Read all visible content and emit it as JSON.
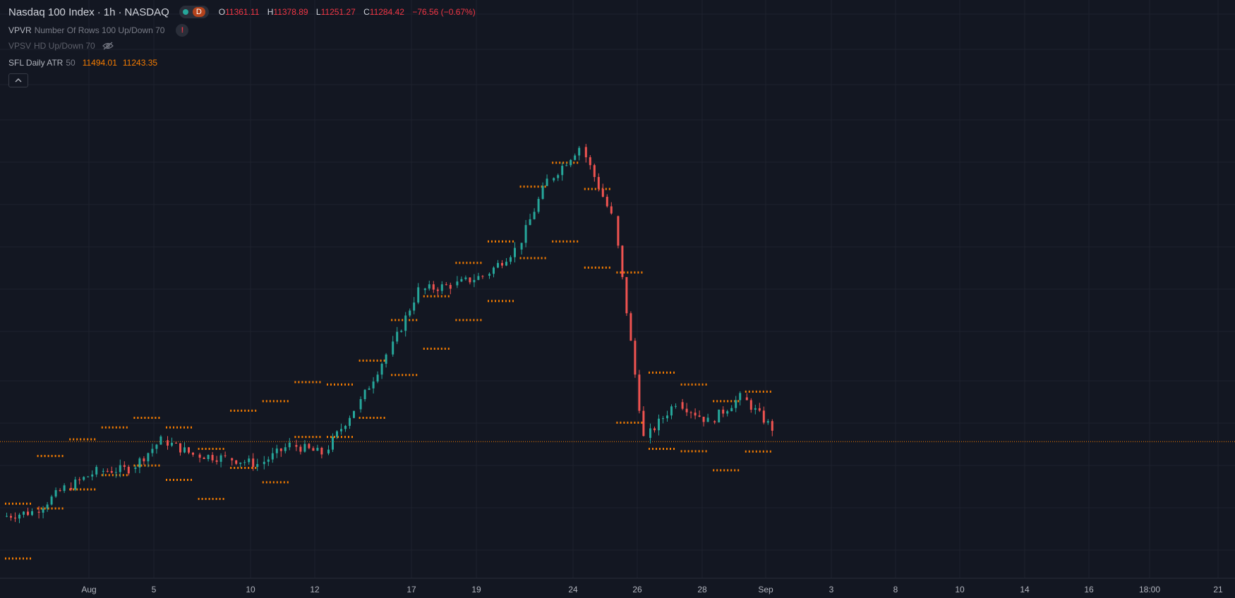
{
  "header": {
    "symbol": "Nasdaq 100 Index",
    "interval": "1h",
    "exchange": "NASDAQ",
    "status_badge": "D",
    "ohlc": {
      "o_label": "O",
      "o": "11361.11",
      "h_label": "H",
      "h": "11378.89",
      "l_label": "L",
      "l": "11251.27",
      "c_label": "C",
      "c": "11284.42",
      "change": "−76.56 (−0.67%)"
    }
  },
  "indicators": [
    {
      "name": "VPVR",
      "params": "Number Of Rows 100 Up/Down 70"
    },
    {
      "name": "VPSV",
      "params": "HD Up/Down 70"
    },
    {
      "name": "SFL Daily ATR",
      "params": "50",
      "v1": "11494.01",
      "v2": "11243.35"
    }
  ],
  "colors": {
    "background": "#131722",
    "up": "#26a69a",
    "down": "#ef5350",
    "atr": "#f57c00",
    "grid": "#1e222d"
  },
  "chart_data": {
    "type": "candlestick",
    "title": "",
    "xlabel": "",
    "ylabel": "",
    "ylim": [
      10800,
      12900
    ],
    "current_price": 11284.42,
    "x_ticks": [
      "Aug",
      "5",
      "10",
      "12",
      "17",
      "19",
      "24",
      "26",
      "28",
      "Sep",
      "3",
      "8",
      "10",
      "14",
      "16",
      "18:00",
      "21"
    ],
    "daily_close": [
      10990,
      11090,
      11160,
      11170,
      11290,
      11230,
      11215,
      11190,
      11270,
      11235,
      11420,
      11650,
      11920,
      11940,
      11980,
      12090,
      12380,
      12520,
      12230,
      11300,
      11450,
      11370,
      11470,
      11340
    ],
    "atr_levels": [
      {
        "upper": 11024,
        "lower": 10794
      },
      {
        "upper": 11224,
        "lower": 11004
      },
      {
        "upper": 11294,
        "lower": 11084
      },
      {
        "upper": 11344,
        "lower": 11144
      },
      {
        "upper": 11384,
        "lower": 11184
      },
      {
        "upper": 11344,
        "lower": 11124
      },
      {
        "upper": 11254,
        "lower": 11044
      },
      {
        "upper": 11414,
        "lower": 11174
      },
      {
        "upper": 11454,
        "lower": 11114
      },
      {
        "upper": 11534,
        "lower": 11304
      },
      {
        "upper": 11524,
        "lower": 11304
      },
      {
        "upper": 11624,
        "lower": 11384
      },
      {
        "upper": 11794,
        "lower": 11564
      },
      {
        "upper": 11894,
        "lower": 11674
      },
      {
        "upper": 12034,
        "lower": 11794
      },
      {
        "upper": 12124,
        "lower": 11874
      },
      {
        "upper": 12354,
        "lower": 12054
      },
      {
        "upper": 12454,
        "lower": 12124
      },
      {
        "upper": 12344,
        "lower": 12014
      },
      {
        "upper": 11994,
        "lower": 11364
      },
      {
        "upper": 11574,
        "lower": 11254
      },
      {
        "upper": 11524,
        "lower": 11244
      },
      {
        "upper": 11454,
        "lower": 11164
      },
      {
        "upper": 11494,
        "lower": 11243
      }
    ]
  }
}
